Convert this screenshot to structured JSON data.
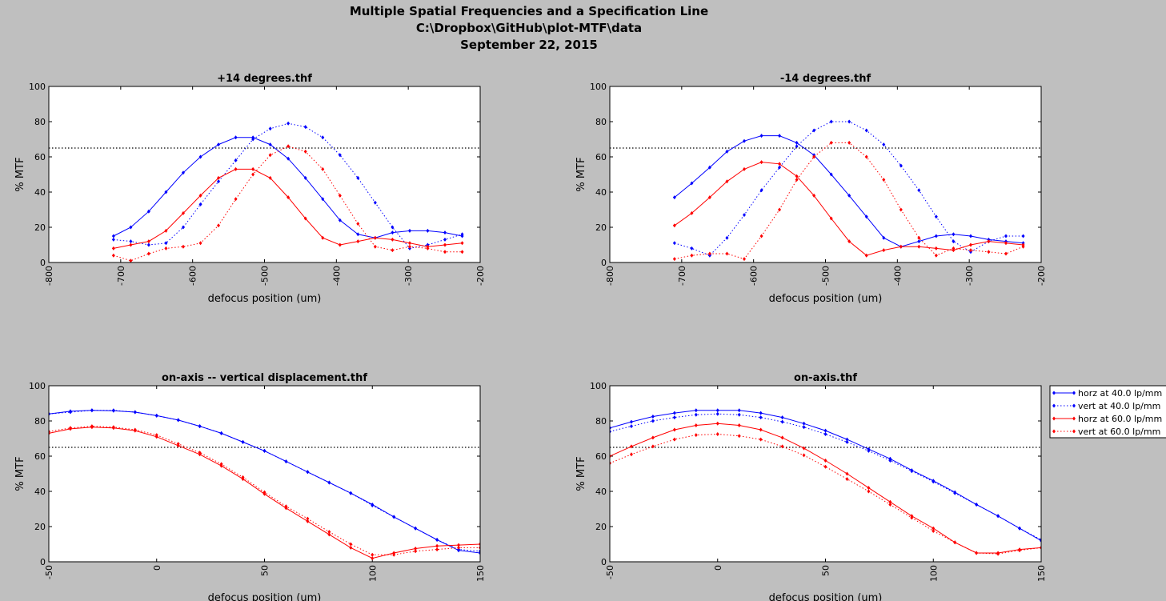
{
  "figure": {
    "title_lines": [
      "Multiple Spatial Frequencies and a Specification Line",
      "C:\\Dropbox\\GitHub\\plot-MTF\\data",
      "September 22, 2015"
    ],
    "background_color": "#bfbfbf"
  },
  "legend": {
    "placement": "right of bottom-right subplot",
    "entries": [
      {
        "label": "horz at 40.0 lp/mm",
        "color": "#0000ff",
        "linestyle": "solid"
      },
      {
        "label": "vert at 40.0 lp/mm",
        "color": "#0000ff",
        "linestyle": "dotted"
      },
      {
        "label": "horz at 60.0 lp/mm",
        "color": "#ff0000",
        "linestyle": "solid"
      },
      {
        "label": "vert at 60.0 lp/mm",
        "color": "#ff0000",
        "linestyle": "dotted"
      }
    ]
  },
  "chart_data": [
    {
      "type": "line",
      "title": "+14 degrees.thf",
      "xlabel": "defocus position (um)",
      "ylabel": "% MTF",
      "xlim": [
        -800,
        -200
      ],
      "ylim": [
        0,
        100
      ],
      "xticks": [
        -800,
        -700,
        -600,
        -500,
        -400,
        -300,
        -200
      ],
      "yticks": [
        0,
        20,
        40,
        60,
        80,
        100
      ],
      "spec_line": 65,
      "grid": false,
      "x": [
        -710,
        -686,
        -661,
        -637,
        -613,
        -589,
        -564,
        -540,
        -516,
        -492,
        -467,
        -443,
        -419,
        -395,
        -370,
        -346,
        -322,
        -298,
        -273,
        -249,
        -225
      ],
      "series": [
        {
          "name": "horz at 40.0 lp/mm",
          "color": "#0000ff",
          "linestyle": "solid",
          "values": [
            15,
            20,
            29,
            40,
            51,
            60,
            67,
            71,
            71,
            67,
            59,
            48,
            36,
            24,
            16,
            14,
            17,
            18,
            18,
            17,
            15
          ]
        },
        {
          "name": "vert at 40.0 lp/mm",
          "color": "#0000ff",
          "linestyle": "dotted",
          "values": [
            13,
            12,
            10,
            11,
            20,
            33,
            46,
            58,
            70,
            76,
            79,
            77,
            71,
            61,
            48,
            34,
            20,
            8,
            10,
            13,
            16
          ]
        },
        {
          "name": "horz at 60.0 lp/mm",
          "color": "#ff0000",
          "linestyle": "solid",
          "values": [
            8,
            10,
            12,
            18,
            28,
            38,
            48,
            53,
            53,
            48,
            37,
            25,
            14,
            10,
            12,
            14,
            13,
            11,
            9,
            10,
            11
          ]
        },
        {
          "name": "vert at 60.0 lp/mm",
          "color": "#ff0000",
          "linestyle": "dotted",
          "values": [
            4,
            1,
            5,
            8,
            9,
            11,
            21,
            36,
            50,
            61,
            66,
            63,
            53,
            38,
            22,
            9,
            7,
            9,
            8,
            6,
            6
          ]
        }
      ]
    },
    {
      "type": "line",
      "title": "-14 degrees.thf",
      "xlabel": "defocus position (um)",
      "ylabel": "% MTF",
      "xlim": [
        -800,
        -200
      ],
      "ylim": [
        0,
        100
      ],
      "xticks": [
        -800,
        -700,
        -600,
        -500,
        -400,
        -300,
        -200
      ],
      "yticks": [
        0,
        20,
        40,
        60,
        80,
        100
      ],
      "spec_line": 65,
      "grid": false,
      "x": [
        -710,
        -686,
        -661,
        -637,
        -613,
        -589,
        -564,
        -540,
        -516,
        -492,
        -467,
        -443,
        -419,
        -395,
        -370,
        -346,
        -322,
        -298,
        -273,
        -249,
        -225
      ],
      "series": [
        {
          "name": "horz at 40.0 lp/mm",
          "color": "#0000ff",
          "linestyle": "solid",
          "values": [
            37,
            45,
            54,
            63,
            69,
            72,
            72,
            68,
            61,
            50,
            38,
            26,
            14,
            9,
            12,
            15,
            16,
            15,
            13,
            12,
            11
          ]
        },
        {
          "name": "vert at 40.0 lp/mm",
          "color": "#0000ff",
          "linestyle": "dotted",
          "values": [
            11,
            8,
            4,
            14,
            27,
            41,
            54,
            66,
            75,
            80,
            80,
            75,
            67,
            55,
            41,
            26,
            12,
            6,
            12,
            15,
            15
          ]
        },
        {
          "name": "horz at 60.0 lp/mm",
          "color": "#ff0000",
          "linestyle": "solid",
          "values": [
            21,
            28,
            37,
            46,
            53,
            57,
            56,
            49,
            38,
            25,
            12,
            4,
            7,
            9,
            9,
            8,
            7,
            10,
            12,
            11,
            10
          ]
        },
        {
          "name": "vert at 60.0 lp/mm",
          "color": "#ff0000",
          "linestyle": "dotted",
          "values": [
            2,
            4,
            5,
            5,
            2,
            15,
            30,
            47,
            60,
            68,
            68,
            60,
            47,
            30,
            14,
            4,
            8,
            7,
            6,
            5,
            9
          ]
        }
      ]
    },
    {
      "type": "line",
      "title": "on-axis -- vertical displacement.thf",
      "xlabel": "defocus position (um)",
      "ylabel": "% MTF",
      "xlim": [
        -50,
        150
      ],
      "ylim": [
        0,
        100
      ],
      "xticks": [
        -50,
        0,
        50,
        100,
        150
      ],
      "yticks": [
        0,
        20,
        40,
        60,
        80,
        100
      ],
      "spec_line": 65,
      "grid": false,
      "x": [
        -50,
        -40,
        -30,
        -20,
        -10,
        0,
        10,
        20,
        30,
        40,
        50,
        60,
        70,
        80,
        90,
        100,
        110,
        120,
        130,
        140,
        150
      ],
      "series": [
        {
          "name": "horz at 40.0 lp/mm",
          "color": "#0000ff",
          "linestyle": "solid",
          "values": [
            84,
            85.5,
            86,
            85.8,
            85,
            83,
            80.5,
            77,
            73,
            68,
            63,
            57,
            51,
            45,
            39,
            32.5,
            25.5,
            19,
            12.5,
            6.5,
            5
          ]
        },
        {
          "name": "vert at 40.0 lp/mm",
          "color": "#0000ff",
          "linestyle": "dotted",
          "values": [
            84,
            85,
            86,
            86,
            85,
            83,
            80.5,
            77,
            73,
            68,
            63,
            57,
            51,
            45,
            39,
            32,
            25.5,
            19,
            12.5,
            7,
            6
          ]
        },
        {
          "name": "horz at 60.0 lp/mm",
          "color": "#ff0000",
          "linestyle": "solid",
          "values": [
            73,
            75.5,
            76.5,
            76,
            74.5,
            71,
            66,
            61,
            54.5,
            47,
            38.5,
            30.5,
            23,
            15.5,
            8,
            2,
            5,
            7.5,
            9,
            9.5,
            10
          ]
        },
        {
          "name": "vert at 60.0 lp/mm",
          "color": "#ff0000",
          "linestyle": "dotted",
          "values": [
            74,
            76,
            77,
            76.5,
            75,
            72,
            67,
            62,
            55.5,
            48,
            39.5,
            31.5,
            24.5,
            17,
            10,
            4,
            4,
            6,
            7,
            8,
            8
          ]
        }
      ]
    },
    {
      "type": "line",
      "title": "on-axis.thf",
      "xlabel": "defocus position (um)",
      "ylabel": "% MTF",
      "xlim": [
        -50,
        150
      ],
      "ylim": [
        0,
        100
      ],
      "xticks": [
        -50,
        0,
        50,
        100,
        150
      ],
      "yticks": [
        0,
        20,
        40,
        60,
        80,
        100
      ],
      "spec_line": 65,
      "grid": false,
      "x": [
        -50,
        -40,
        -30,
        -20,
        -10,
        0,
        10,
        20,
        30,
        40,
        50,
        60,
        70,
        80,
        90,
        100,
        110,
        120,
        130,
        140,
        150
      ],
      "series": [
        {
          "name": "horz at 40.0 lp/mm",
          "color": "#0000ff",
          "linestyle": "solid",
          "values": [
            76,
            79.5,
            82.5,
            84.5,
            86,
            86,
            86,
            84.5,
            82,
            78.5,
            74.5,
            69.5,
            64,
            58.5,
            52,
            46,
            39.5,
            32.5,
            26,
            19,
            12
          ]
        },
        {
          "name": "vert at 40.0 lp/mm",
          "color": "#0000ff",
          "linestyle": "dotted",
          "values": [
            74,
            77,
            80,
            82,
            83.5,
            84,
            83.5,
            82,
            79.5,
            76.5,
            72.5,
            68,
            63,
            57.5,
            51.5,
            45.5,
            39,
            32.5,
            26,
            19,
            12.5
          ]
        },
        {
          "name": "horz at 60.0 lp/mm",
          "color": "#ff0000",
          "linestyle": "solid",
          "values": [
            60,
            65.5,
            70.5,
            75,
            77.5,
            78.5,
            77.5,
            75,
            70.5,
            64.5,
            57.5,
            50,
            42,
            34,
            26,
            19,
            11,
            5,
            5,
            7,
            8
          ]
        },
        {
          "name": "vert at 60.0 lp/mm",
          "color": "#ff0000",
          "linestyle": "dotted",
          "values": [
            56,
            61,
            65.5,
            69.5,
            72,
            72.5,
            71.5,
            69.5,
            65.5,
            60.5,
            54,
            47,
            40,
            32.5,
            25,
            17.5,
            11,
            5,
            4.5,
            6.5,
            8
          ]
        }
      ]
    }
  ]
}
